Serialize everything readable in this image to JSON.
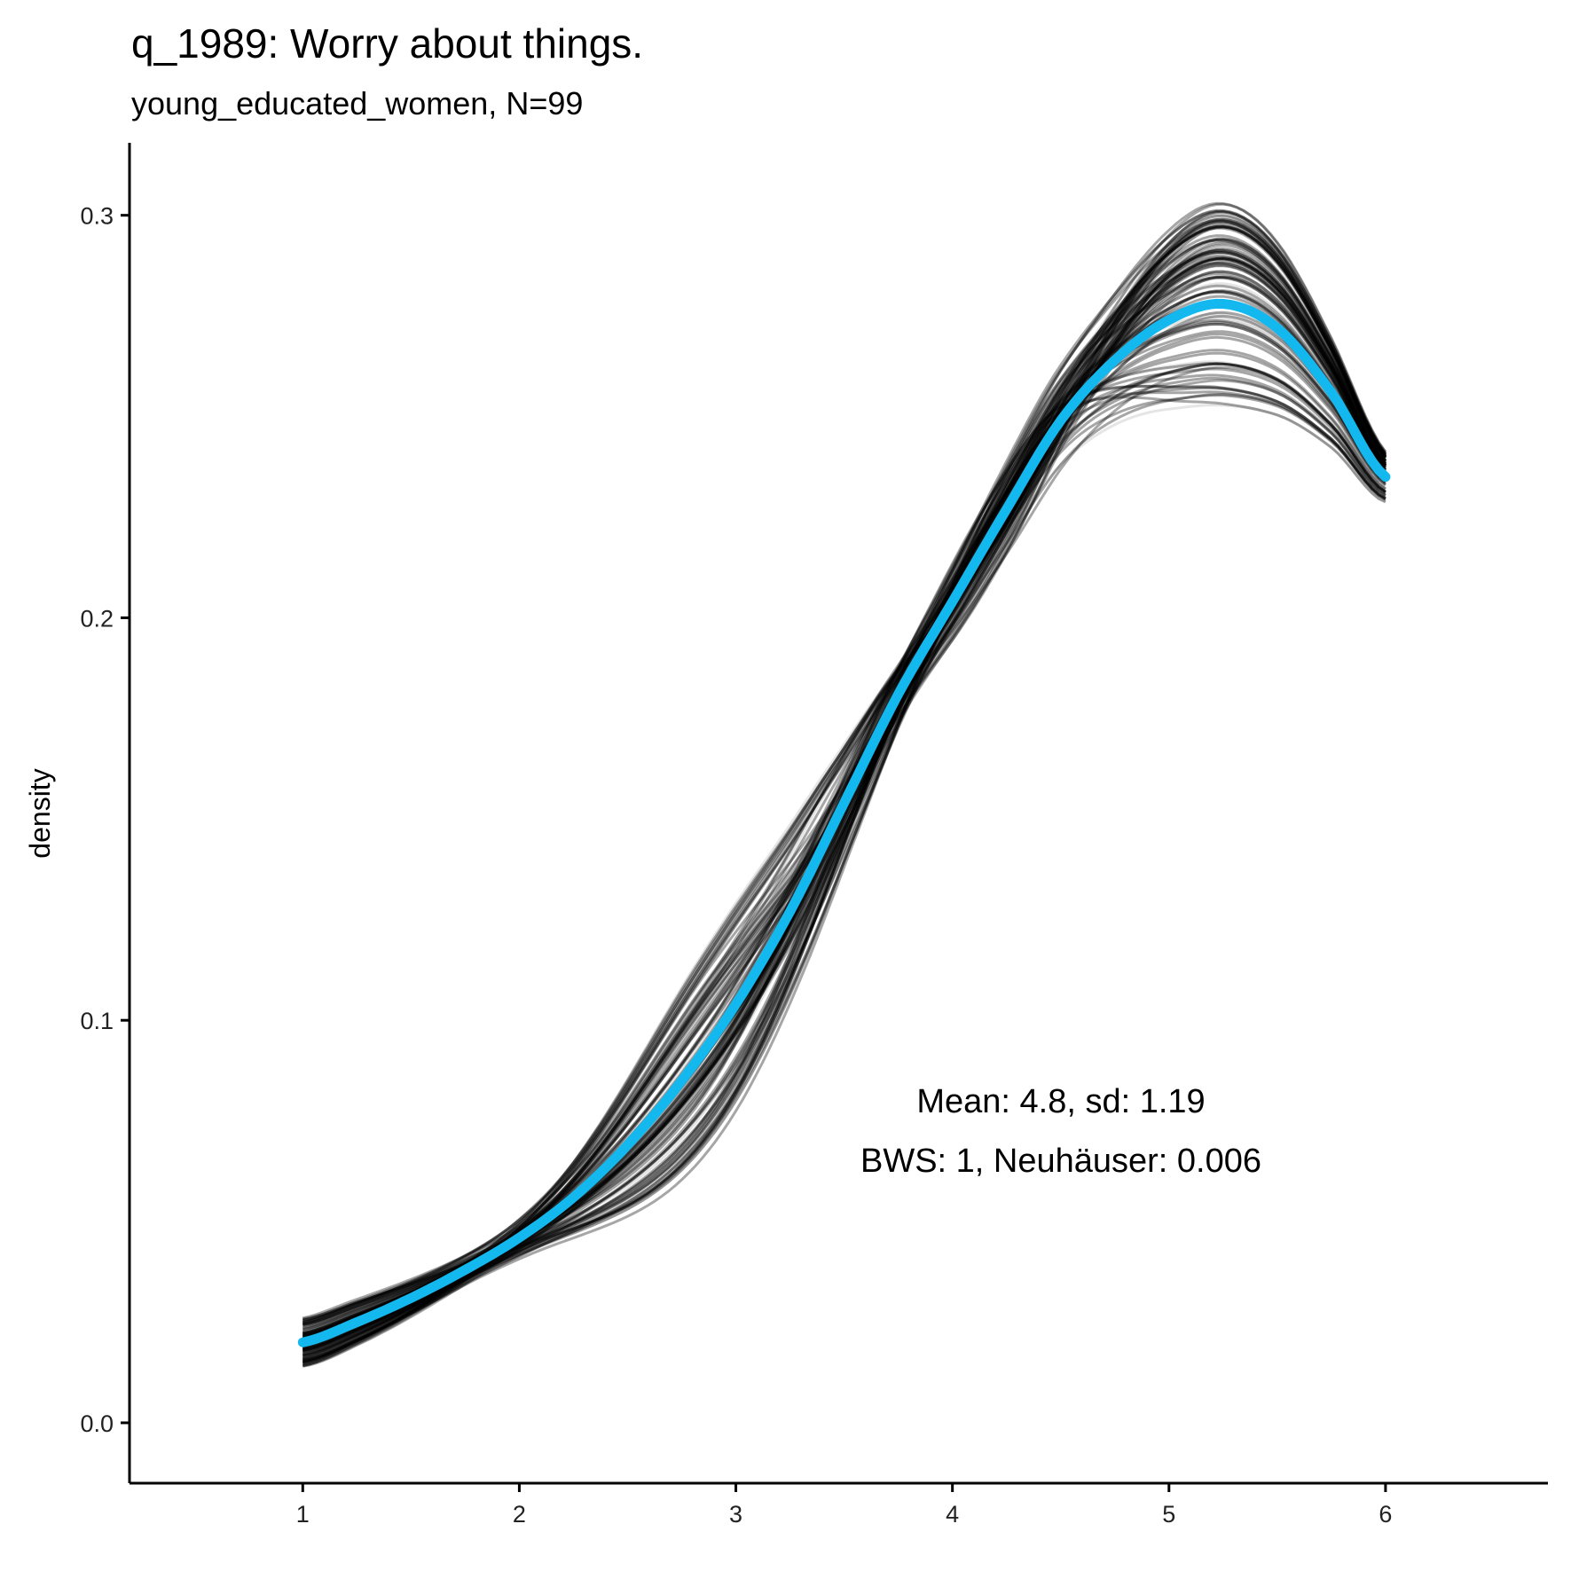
{
  "title": "q_1989: Worry about things.",
  "subtitle": "young_educated_women, N=99",
  "chart_data": {
    "type": "line",
    "ylabel": "density",
    "xlabel": "",
    "xlim": [
      0.2,
      6.75
    ],
    "ylim": [
      -0.015,
      0.318
    ],
    "x_ticks": [
      1,
      2,
      3,
      4,
      5,
      6
    ],
    "y_ticks": [
      0.0,
      0.1,
      0.2,
      0.3
    ],
    "y_tick_labels": [
      "0.0",
      "0.1",
      "0.2",
      "0.3"
    ],
    "x_tick_labels": [
      "1",
      "2",
      "3",
      "4",
      "5",
      "6"
    ],
    "annotations": [
      "Mean: 4.8, sd: 1.19",
      "BWS: 1, Neuhäuser: 0.006"
    ],
    "series": [
      {
        "name": "mean density",
        "color": "#12B8EE",
        "x": [
          1.0,
          1.25,
          1.5,
          1.75,
          2.0,
          2.25,
          2.5,
          2.75,
          3.0,
          3.25,
          3.5,
          3.75,
          4.0,
          4.25,
          4.5,
          4.75,
          5.0,
          5.25,
          5.5,
          5.75,
          6.0
        ],
        "y": [
          0.02,
          0.025,
          0.031,
          0.038,
          0.046,
          0.056,
          0.069,
          0.085,
          0.104,
          0.127,
          0.154,
          0.181,
          0.204,
          0.227,
          0.249,
          0.264,
          0.274,
          0.278,
          0.272,
          0.256,
          0.235
        ]
      }
    ],
    "bootstrap_lines": {
      "count": 99,
      "color": "#000000",
      "peak_range": [
        0.255,
        0.302
      ]
    }
  }
}
